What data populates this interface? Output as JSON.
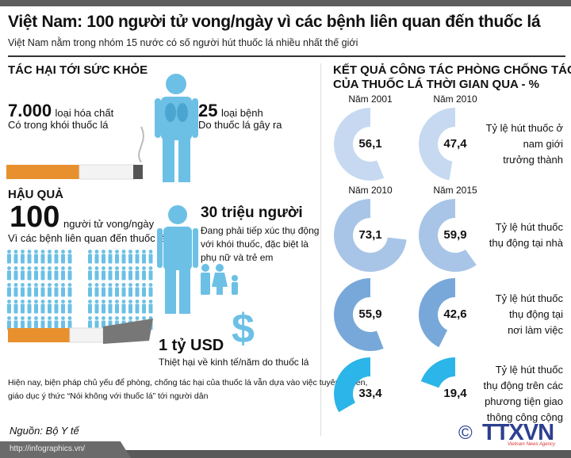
{
  "title": "Việt Nam: 100 người tử vong/ngày vì các bệnh liên quan đến thuốc lá",
  "subtitle": "Việt Nam nằm trong nhóm 15 nước có số người hút thuốc lá nhiều nhất thế giới",
  "left": {
    "health_heading": "TÁC HẠI TỚI SỨC KHỎE",
    "chemicals_num": "7.000",
    "chemicals_unit": "loại hóa chất",
    "chemicals_desc": "Có trong khói thuốc lá",
    "diseases_num": "25",
    "diseases_unit": "loại bệnh",
    "diseases_desc": "Do thuốc lá gây ra",
    "consequence_heading": "HẬU QUẢ",
    "deaths_num": "100",
    "deaths_unit": "người tử vong/ngày",
    "deaths_desc": "Vì các bệnh liên quan đến thuốc lá",
    "passive_num": "30 triệu người",
    "passive_desc": [
      "Đang phải tiếp xúc thụ động",
      "với khói thuốc, đặc biệt là",
      "phụ nữ và trẻ em"
    ],
    "cost_num": "1 tỷ USD",
    "cost_desc": "Thiệt hại về kinh tế/năm do thuốc lá",
    "note": [
      "Hiện nay, biện pháp chủ yếu để phòng, chống tác hại của thuốc lá vẫn dựa vào việc tuyên truyền,",
      "giáo dục ý thức “Nói không với thuốc lá” tới người dân"
    ],
    "source": "Nguồn: Bộ Y tế"
  },
  "right": {
    "heading_line1": "KẾT QUẢ CÔNG TÁC PHÒNG CHỐNG TÁC HẠI",
    "heading_line2": "CỦA THUỐC LÁ THỜI GIAN QUA - %",
    "rows": [
      {
        "years": [
          "Năm 2001",
          "Năm 2010"
        ],
        "values": [
          "56,1",
          "47,4"
        ],
        "label": [
          "Tỷ lệ hút thuốc ở",
          "nam giới",
          "trưởng thành"
        ],
        "color": "#c6d9f1"
      },
      {
        "years": [
          "Năm 2010",
          "Năm 2015"
        ],
        "values": [
          "73,1",
          "59,9"
        ],
        "label": [
          "Tỷ lệ hút thuốc",
          "thụ động tại nhà"
        ],
        "color": "#a8c5e7"
      },
      {
        "years": [],
        "values": [
          "55,9",
          "42,6"
        ],
        "label": [
          "Tỷ lệ hút thuốc",
          "thụ động tại",
          "nơi làm việc"
        ],
        "color": "#78a8d9"
      },
      {
        "years": [],
        "values": [
          "33,4",
          "19,4"
        ],
        "label": [
          "Tỷ lệ hút thuốc",
          "thụ động trên các",
          "phương tiện giao",
          "thông công cộng"
        ],
        "color": "#2bb5e8"
      }
    ]
  },
  "chart_data": {
    "type": "donut",
    "unit": "%",
    "series": [
      {
        "label": "Tỷ lệ hút thuốc ở nam giới trưởng thành",
        "x": [
          "Năm 2001",
          "Năm 2010"
        ],
        "values": [
          56.1,
          47.4
        ]
      },
      {
        "label": "Tỷ lệ hút thuốc thụ động tại nhà",
        "x": [
          "Năm 2010",
          "Năm 2015"
        ],
        "values": [
          73.1,
          59.9
        ]
      },
      {
        "label": "Tỷ lệ hút thuốc thụ động tại nơi làm việc",
        "values": [
          55.9,
          42.6
        ]
      },
      {
        "label": "Tỷ lệ hút thuốc thụ động trên các phương tiện giao thông công cộng",
        "values": [
          33.4,
          19.4
        ]
      }
    ]
  },
  "logo": {
    "text": "TTXVN",
    "tagline": "Vietnam News Agency",
    "copyright": "©"
  },
  "footer": {
    "url": "http://infographics.vn/"
  }
}
